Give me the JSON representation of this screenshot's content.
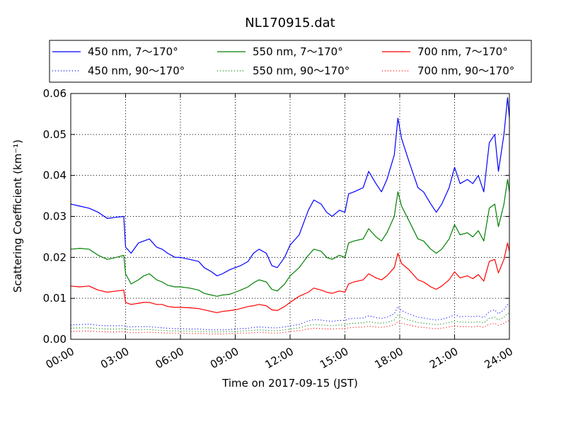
{
  "chart_data": {
    "type": "line",
    "title": "NL170915.dat",
    "xlabel": "Time on 2017-09-15 (JST)",
    "ylabel": "Scattering Coefficient (km⁻¹)",
    "x_unit": "hour",
    "xlim": [
      0,
      24
    ],
    "ylim": [
      0,
      0.06
    ],
    "x_ticks": [
      0,
      3,
      6,
      9,
      12,
      15,
      18,
      21,
      24
    ],
    "x_tick_labels": [
      "00:00",
      "03:00",
      "06:00",
      "09:00",
      "12:00",
      "15:00",
      "18:00",
      "21:00",
      "24:00"
    ],
    "y_ticks": [
      0,
      0.01,
      0.02,
      0.03,
      0.04,
      0.05,
      0.06
    ],
    "y_tick_labels": [
      "0.00",
      "0.01",
      "0.02",
      "0.03",
      "0.04",
      "0.05",
      "0.06"
    ],
    "grid": true,
    "legend_position": "top",
    "x": [
      0.0,
      0.5,
      1.0,
      1.5,
      2.0,
      2.5,
      2.9,
      3.0,
      3.3,
      3.7,
      4.0,
      4.3,
      4.7,
      5.0,
      5.3,
      5.7,
      6.0,
      6.5,
      7.0,
      7.3,
      7.7,
      8.0,
      8.3,
      8.7,
      9.0,
      9.3,
      9.7,
      10.0,
      10.3,
      10.7,
      11.0,
      11.3,
      11.7,
      12.0,
      12.5,
      13.0,
      13.3,
      13.7,
      14.0,
      14.3,
      14.7,
      15.0,
      15.2,
      15.5,
      16.0,
      16.3,
      16.7,
      17.0,
      17.3,
      17.7,
      17.9,
      18.1,
      18.5,
      19.0,
      19.3,
      19.7,
      20.0,
      20.3,
      20.7,
      21.0,
      21.3,
      21.7,
      22.0,
      22.3,
      22.6,
      22.9,
      23.2,
      23.4,
      23.7,
      23.9,
      24.0
    ],
    "series": [
      {
        "name": "450 nm, 7～170°",
        "color": "#0000ff",
        "style": "solid",
        "values": [
          0.033,
          0.0325,
          0.032,
          0.031,
          0.0295,
          0.0298,
          0.03,
          0.0225,
          0.021,
          0.0235,
          0.024,
          0.0245,
          0.0225,
          0.022,
          0.021,
          0.02,
          0.02,
          0.0195,
          0.019,
          0.0175,
          0.0165,
          0.0155,
          0.016,
          0.017,
          0.0175,
          0.018,
          0.019,
          0.021,
          0.022,
          0.021,
          0.018,
          0.0175,
          0.02,
          0.023,
          0.0255,
          0.0315,
          0.034,
          0.033,
          0.031,
          0.03,
          0.0315,
          0.031,
          0.0355,
          0.036,
          0.037,
          0.041,
          0.038,
          0.036,
          0.039,
          0.045,
          0.054,
          0.049,
          0.0435,
          0.037,
          0.036,
          0.033,
          0.031,
          0.033,
          0.037,
          0.042,
          0.038,
          0.039,
          0.038,
          0.04,
          0.036,
          0.048,
          0.05,
          0.041,
          0.05,
          0.059,
          0.054
        ]
      },
      {
        "name": "450 nm, 90～170°",
        "color": "#0000ff",
        "style": "dotted",
        "values": [
          0.0035,
          0.0036,
          0.0037,
          0.0034,
          0.0033,
          0.0033,
          0.0034,
          0.0031,
          0.003,
          0.0031,
          0.0031,
          0.0031,
          0.0029,
          0.0028,
          0.0027,
          0.0026,
          0.0026,
          0.0025,
          0.0025,
          0.0024,
          0.0023,
          0.0023,
          0.0023,
          0.0024,
          0.0025,
          0.0026,
          0.0027,
          0.0029,
          0.003,
          0.0029,
          0.0028,
          0.0028,
          0.003,
          0.0033,
          0.0036,
          0.0045,
          0.0048,
          0.0047,
          0.0045,
          0.0044,
          0.0046,
          0.0046,
          0.005,
          0.0051,
          0.0052,
          0.0057,
          0.0053,
          0.0051,
          0.0054,
          0.0062,
          0.008,
          0.007,
          0.0062,
          0.0054,
          0.0052,
          0.0049,
          0.0047,
          0.0049,
          0.0054,
          0.006,
          0.0055,
          0.0056,
          0.0055,
          0.0057,
          0.0053,
          0.0068,
          0.0072,
          0.0062,
          0.0072,
          0.0085,
          0.008
        ]
      },
      {
        "name": "550 nm, 7～170°",
        "color": "#008000",
        "style": "solid",
        "values": [
          0.022,
          0.0222,
          0.022,
          0.0205,
          0.0195,
          0.02,
          0.0205,
          0.016,
          0.0135,
          0.0145,
          0.0155,
          0.016,
          0.0145,
          0.014,
          0.0132,
          0.0128,
          0.0128,
          0.0125,
          0.012,
          0.0112,
          0.0108,
          0.0105,
          0.0108,
          0.011,
          0.0115,
          0.012,
          0.0128,
          0.0138,
          0.0145,
          0.014,
          0.0122,
          0.0118,
          0.0135,
          0.0155,
          0.0175,
          0.0205,
          0.022,
          0.0215,
          0.02,
          0.0195,
          0.0205,
          0.02,
          0.0235,
          0.024,
          0.0245,
          0.027,
          0.025,
          0.024,
          0.026,
          0.03,
          0.036,
          0.0325,
          0.029,
          0.0245,
          0.024,
          0.022,
          0.021,
          0.022,
          0.0245,
          0.028,
          0.0255,
          0.026,
          0.025,
          0.0265,
          0.024,
          0.032,
          0.033,
          0.0275,
          0.033,
          0.039,
          0.036
        ]
      },
      {
        "name": "550 nm, 90～170°",
        "color": "#008000",
        "style": "dotted",
        "values": [
          0.0027,
          0.0028,
          0.0028,
          0.0026,
          0.0025,
          0.0025,
          0.0026,
          0.0024,
          0.0023,
          0.0023,
          0.0024,
          0.0024,
          0.0022,
          0.0022,
          0.0021,
          0.002,
          0.002,
          0.002,
          0.0019,
          0.0019,
          0.0018,
          0.0018,
          0.0018,
          0.0019,
          0.0019,
          0.002,
          0.0021,
          0.0022,
          0.0023,
          0.0022,
          0.0021,
          0.0021,
          0.0023,
          0.0025,
          0.0028,
          0.0034,
          0.0036,
          0.0035,
          0.0034,
          0.0033,
          0.0035,
          0.0035,
          0.0038,
          0.0039,
          0.004,
          0.0043,
          0.004,
          0.0039,
          0.0041,
          0.0047,
          0.006,
          0.0053,
          0.0047,
          0.0041,
          0.0039,
          0.0037,
          0.0036,
          0.0037,
          0.0041,
          0.0045,
          0.0042,
          0.0042,
          0.0041,
          0.0043,
          0.004,
          0.0051,
          0.0054,
          0.0047,
          0.0054,
          0.0064,
          0.006
        ]
      },
      {
        "name": "700 nm, 7～170°",
        "color": "#ff0000",
        "style": "solid",
        "values": [
          0.013,
          0.0128,
          0.013,
          0.012,
          0.0115,
          0.0118,
          0.012,
          0.009,
          0.0085,
          0.0088,
          0.009,
          0.009,
          0.0085,
          0.0085,
          0.008,
          0.0078,
          0.0078,
          0.0077,
          0.0075,
          0.0072,
          0.0068,
          0.0065,
          0.0068,
          0.007,
          0.0072,
          0.0075,
          0.008,
          0.0082,
          0.0085,
          0.0082,
          0.0072,
          0.007,
          0.008,
          0.009,
          0.0105,
          0.0115,
          0.0125,
          0.012,
          0.0115,
          0.0112,
          0.0118,
          0.0115,
          0.0135,
          0.014,
          0.0145,
          0.016,
          0.015,
          0.0145,
          0.0155,
          0.0175,
          0.021,
          0.0185,
          0.017,
          0.0145,
          0.014,
          0.0128,
          0.0122,
          0.013,
          0.0145,
          0.0165,
          0.015,
          0.0155,
          0.0148,
          0.0158,
          0.0142,
          0.019,
          0.0195,
          0.0162,
          0.0195,
          0.0235,
          0.0215
        ]
      },
      {
        "name": "700 nm, 90～170°",
        "color": "#ff0000",
        "style": "dotted",
        "values": [
          0.0019,
          0.002,
          0.002,
          0.0019,
          0.0018,
          0.0018,
          0.0019,
          0.0017,
          0.0016,
          0.0016,
          0.0017,
          0.0017,
          0.0016,
          0.0016,
          0.0015,
          0.0015,
          0.0015,
          0.0014,
          0.0014,
          0.0014,
          0.0013,
          0.0013,
          0.0013,
          0.0014,
          0.0014,
          0.0015,
          0.0015,
          0.0016,
          0.0017,
          0.0016,
          0.0015,
          0.0015,
          0.0017,
          0.0019,
          0.0021,
          0.0025,
          0.0027,
          0.0026,
          0.0025,
          0.0025,
          0.0026,
          0.0026,
          0.0028,
          0.0029,
          0.003,
          0.0032,
          0.003,
          0.0029,
          0.0031,
          0.0035,
          0.0044,
          0.0039,
          0.0035,
          0.003,
          0.0029,
          0.0027,
          0.0026,
          0.0027,
          0.003,
          0.0033,
          0.0031,
          0.0031,
          0.003,
          0.0032,
          0.0029,
          0.0037,
          0.0039,
          0.0034,
          0.0039,
          0.0046,
          0.0043
        ]
      }
    ]
  }
}
